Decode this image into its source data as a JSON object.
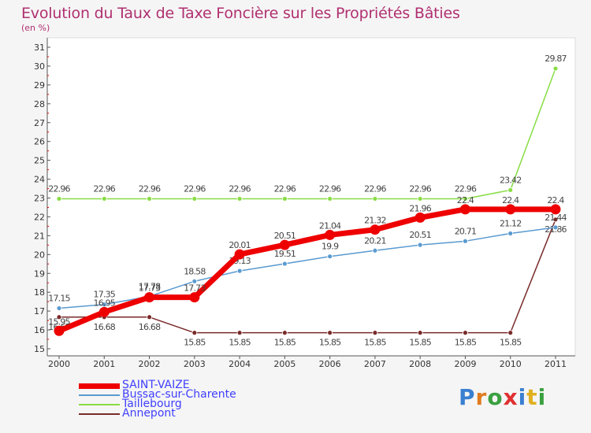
{
  "title": "Evolution du Taux de Taxe Foncière sur les Propriétés Bâties",
  "subtitle": "(en %)",
  "logo": {
    "letters": [
      "P",
      "r",
      "o",
      "x",
      "i",
      "t",
      "i"
    ],
    "colors": [
      "#3a7fd0",
      "#e07b20",
      "#3aa040",
      "#e03030",
      "#3a7fd0",
      "#e0b020",
      "#3aa040"
    ]
  },
  "chart_data": {
    "type": "line",
    "title": "Evolution du Taux de Taxe Foncière sur les Propriétés Bâties",
    "ylabel": "(en %)",
    "xlabel": "",
    "x": [
      "2000",
      "2001",
      "2002",
      "2003",
      "2004",
      "2005",
      "2006",
      "2007",
      "2008",
      "2009",
      "2010",
      "2011"
    ],
    "ylim": [
      15,
      31
    ],
    "yticks": [
      "15",
      "16",
      "17",
      "18",
      "19",
      "20",
      "21",
      "22",
      "23",
      "24",
      "25",
      "26",
      "27",
      "28",
      "29",
      "30",
      "31"
    ],
    "grid": false,
    "legend_position": "bottom-left",
    "series": [
      {
        "name": "SAINT-VAIZE",
        "color": "#ee0000",
        "values": [
          15.95,
          16.95,
          17.73,
          17.73,
          20.01,
          20.51,
          21.04,
          21.32,
          21.96,
          22.4,
          22.4,
          22.4
        ],
        "labels": [
          "15.95",
          "16.95",
          "17.73",
          "17.73",
          "20.01",
          "20.51",
          "21.04",
          "21.32",
          "21.96",
          "22.4",
          "22.4",
          "22.4"
        ]
      },
      {
        "name": "Bussac-sur-Charente",
        "color": "#5a9ad0",
        "values": [
          17.15,
          17.35,
          17.78,
          18.58,
          19.13,
          19.51,
          19.9,
          20.21,
          20.51,
          20.71,
          21.12,
          21.44
        ],
        "labels": [
          "17.15",
          "17.35",
          "17.78",
          "18.58",
          "19.13",
          "19.51",
          "19.9",
          "20.21",
          "20.51",
          "20.71",
          "21.12",
          "21.44"
        ]
      },
      {
        "name": "Taillebourg",
        "color": "#88dd44",
        "values": [
          22.96,
          22.96,
          22.96,
          22.96,
          22.96,
          22.96,
          22.96,
          22.96,
          22.96,
          22.96,
          23.42,
          29.87
        ],
        "labels": [
          "22.96",
          "22.96",
          "22.96",
          "22.96",
          "22.96",
          "22.96",
          "22.96",
          "22.96",
          "22.96",
          "22.96",
          "23.42",
          "29.87"
        ]
      },
      {
        "name": "Annepont",
        "color": "#7a2a2a",
        "values": [
          16.68,
          16.68,
          16.68,
          15.85,
          15.85,
          15.85,
          15.85,
          15.85,
          15.85,
          15.85,
          15.85,
          21.86
        ],
        "labels": [
          "16.68",
          "16.68",
          "16.68",
          "15.85",
          "15.85",
          "15.85",
          "15.85",
          "15.85",
          "15.85",
          "15.85",
          "15.85",
          "21.86"
        ]
      }
    ]
  }
}
